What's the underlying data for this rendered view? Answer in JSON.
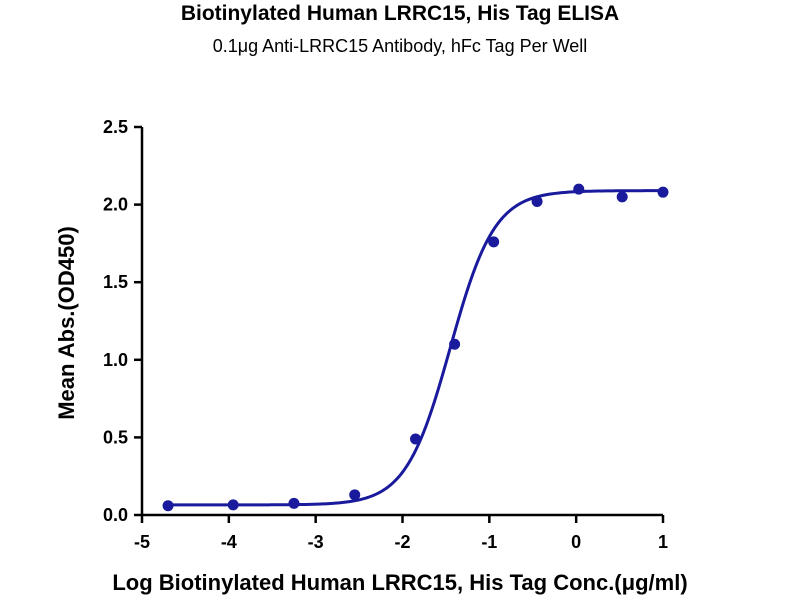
{
  "chart_data": {
    "type": "scatter",
    "title": "Biotinylated Human LRRC15, His Tag ELISA",
    "subtitle": "0.1μg Anti-LRRC15 Antibody, hFc Tag Per Well",
    "xlabel": "Log Biotinylated Human LRRC15, His Tag Conc.(μg/ml)",
    "ylabel": "Mean Abs.(OD450)",
    "xlim": [
      -5,
      1
    ],
    "ylim": [
      0,
      2.5
    ],
    "xticks": [
      "-5",
      "-4",
      "-3",
      "-2",
      "-1",
      "0",
      "1"
    ],
    "yticks": [
      "0.0",
      "0.5",
      "1.0",
      "1.5",
      "2.0",
      "2.5"
    ],
    "grid": false,
    "color": "#1a1a9c",
    "series": [
      {
        "points": [
          {
            "x": -4.7,
            "y": 0.06
          },
          {
            "x": -3.95,
            "y": 0.065
          },
          {
            "x": -3.25,
            "y": 0.075
          },
          {
            "x": -2.55,
            "y": 0.13
          },
          {
            "x": -1.85,
            "y": 0.49
          },
          {
            "x": -1.4,
            "y": 1.1
          },
          {
            "x": -0.95,
            "y": 1.76
          },
          {
            "x": -0.45,
            "y": 2.02
          },
          {
            "x": 0.03,
            "y": 2.1
          },
          {
            "x": 0.53,
            "y": 2.05
          },
          {
            "x": 1.0,
            "y": 2.08
          }
        ],
        "fit": {
          "model": "4PL",
          "bottom": 0.065,
          "top": 2.09,
          "log_ec50": -1.45,
          "hill": 1.7
        }
      }
    ]
  }
}
